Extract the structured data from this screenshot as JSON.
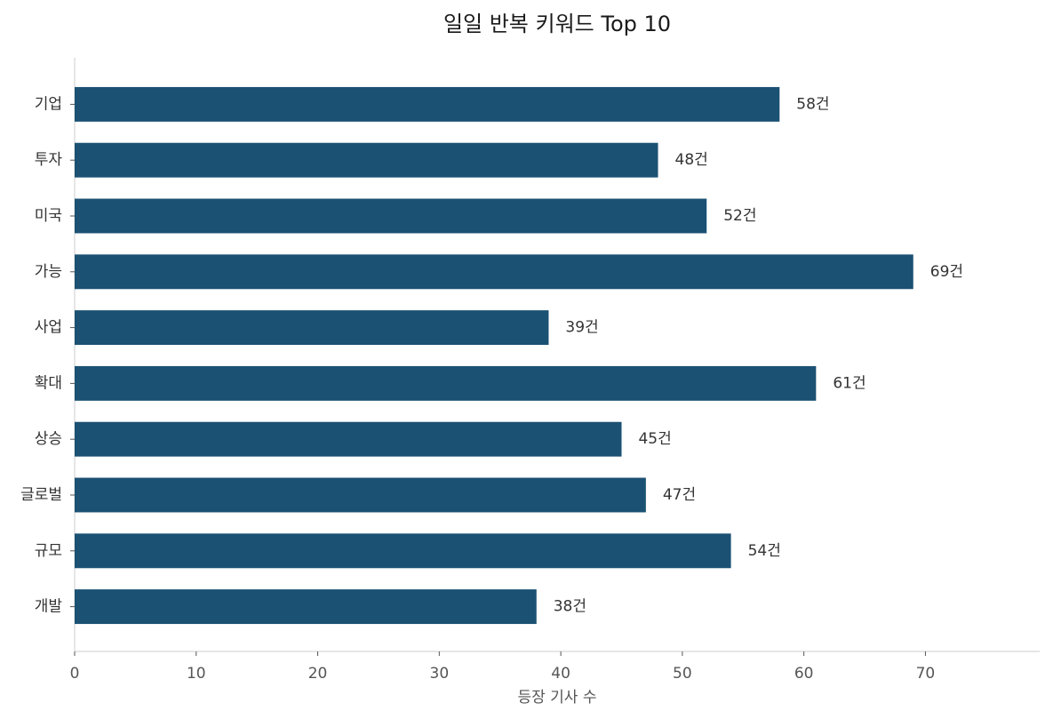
{
  "chart_data": {
    "type": "barh",
    "title": "일일 반복 키워드 Top 10",
    "x_label": "등장 기사 수",
    "categories": [
      "기업",
      "투자",
      "미국",
      "가능",
      "사업",
      "확대",
      "상승",
      "글로벌",
      "규모",
      "개발"
    ],
    "values": [
      58,
      48,
      52,
      69,
      39,
      61,
      45,
      47,
      54,
      38
    ],
    "value_labels": [
      "58건",
      "48건",
      "52건",
      "69건",
      "39건",
      "61건",
      "45건",
      "47건",
      "54건",
      "38건"
    ],
    "color": "#1b5173",
    "xlim": [
      0,
      79.4
    ],
    "xticks": [
      0,
      10,
      20,
      30,
      40,
      50,
      60,
      70
    ]
  }
}
